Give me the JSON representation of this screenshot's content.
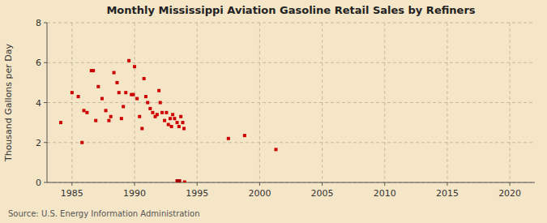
{
  "chart_data": {
    "type": "scatter",
    "title": "Monthly Mississippi Aviation Gasoline Retail Sales by Refiners",
    "y_label": "Thousand Gallons per Day",
    "annotations": [
      "Source: U.S. Energy Information Administration"
    ],
    "xlim": [
      1983,
      2022
    ],
    "ylim": [
      0,
      8
    ],
    "xticks": [
      1985,
      1990,
      1995,
      2000,
      2005,
      2010,
      2015,
      2020
    ],
    "yticks": [
      0,
      2,
      4,
      6,
      8
    ],
    "grid": true,
    "series": [
      {
        "color": "#cc0000",
        "marker": "square",
        "x": [
          1984.1,
          1985.0,
          1985.5,
          1985.8,
          1985.95,
          1986.2,
          1986.55,
          1986.7,
          1986.9,
          1987.1,
          1987.4,
          1987.7,
          1987.95,
          1988.1,
          1988.35,
          1988.6,
          1988.75,
          1988.95,
          1989.1,
          1989.3,
          1989.55,
          1989.75,
          1989.9,
          1990.0,
          1990.2,
          1990.4,
          1990.6,
          1990.75,
          1990.9,
          1991.05,
          1991.25,
          1991.45,
          1991.65,
          1991.8,
          1991.95,
          1992.05,
          1992.2,
          1992.4,
          1992.55,
          1992.7,
          1992.85,
          1992.95,
          1993.05,
          1993.2,
          1993.4,
          1993.55,
          1993.7,
          1993.85,
          1993.95,
          1994.0,
          1997.5,
          1998.8,
          2001.3
        ],
        "values": [
          3.0,
          4.5,
          4.3,
          2.0,
          3.6,
          3.5,
          5.6,
          5.6,
          3.1,
          4.8,
          4.2,
          3.6,
          3.1,
          3.3,
          5.5,
          5.0,
          4.5,
          3.2,
          3.8,
          4.5,
          6.1,
          4.4,
          4.4,
          5.8,
          4.2,
          3.3,
          2.7,
          5.2,
          4.3,
          4.0,
          3.7,
          3.5,
          3.3,
          3.4,
          4.6,
          4.0,
          3.5,
          3.1,
          3.5,
          2.9,
          3.2,
          2.8,
          3.4,
          3.2,
          3.0,
          2.8,
          3.3,
          3.0,
          2.7,
          0.02,
          2.2,
          2.35,
          1.65
        ]
      },
      {
        "color": "#aa0000",
        "marker": "square",
        "x": [
          1993.5
        ],
        "values": [
          0.02
        ]
      }
    ]
  }
}
